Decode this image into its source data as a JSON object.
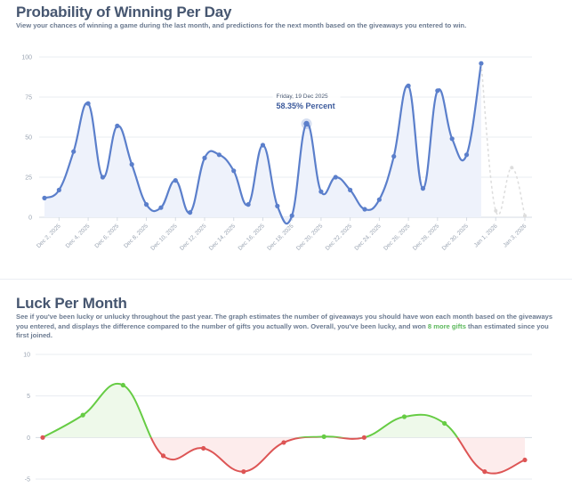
{
  "colors": {
    "line_blue": "#5b7fcb",
    "fill_blue": "#eef2fb",
    "prediction": "#dddddd",
    "green": "#66cc44",
    "red": "#dd5555",
    "green_fill": "#eef9ea",
    "red_fill": "#fdecec",
    "gridline": "#e8ecf1",
    "text_muted": "#9aa4b2",
    "heading": "#465670"
  },
  "section1": {
    "title": "Probability of Winning Per Day",
    "description": "View your chances of winning a game during the last month, and predictions for the next month based on the giveaways you entered to win."
  },
  "section2": {
    "title": "Luck Per Month",
    "description_pre": "See if you've been lucky or unlucky throughout the past year. The graph estimates the number of giveaways you should have won each month based on the giveaways you entered, and displays the difference compared to the number of gifts you actually won. Overall, you've been lucky, and won ",
    "description_highlight": "8 more gifts",
    "description_post": " than estimated since you first joined."
  },
  "chart_data": [
    {
      "type": "area",
      "title": "Probability of Winning Per Day",
      "ylabel": "",
      "xlabel": "",
      "ylim": [
        0,
        100
      ],
      "y_ticks": [
        0,
        25,
        50,
        75,
        100
      ],
      "x_tick_labels": [
        "Dec 2, 2025",
        "Dec 4, 2025",
        "Dec 6, 2025",
        "Dec 8, 2025",
        "Dec 10, 2025",
        "Dec 12, 2025",
        "Dec 14, 2025",
        "Dec 16, 2025",
        "Dec 18, 2025",
        "Dec 20, 2025",
        "Dec 22, 2025",
        "Dec 24, 2025",
        "Dec 26, 2025",
        "Dec 28, 2025",
        "Dec 30, 2025",
        "Jan 1, 2026",
        "Jan 3, 2026"
      ],
      "x_start": "Dec 1, 2025",
      "series": [
        {
          "values": [
            12,
            17,
            41,
            71,
            25,
            57,
            33,
            8,
            6,
            23,
            3,
            37,
            39,
            29,
            8,
            45,
            7,
            1,
            58.35,
            16,
            25,
            17,
            5,
            11,
            38,
            82,
            18,
            79,
            49,
            39,
            96
          ]
        },
        {
          "values": [
            4,
            31,
            1
          ]
        }
      ],
      "prediction_offset": 30,
      "tooltip": {
        "date": "Friday, 19 Dec 2025",
        "value": "58.35% Percent"
      },
      "grid": true
    },
    {
      "type": "line",
      "title": "Luck Per Month",
      "ylim": [
        -5,
        10
      ],
      "y_ticks": [
        -5,
        0,
        5,
        10
      ],
      "values": [
        0,
        2.7,
        6.3,
        -2.2,
        -1.3,
        -4.1,
        -0.6,
        0.1,
        0,
        2.5,
        1.7,
        -4.1,
        -2.7
      ],
      "positive_color": "#66cc44",
      "negative_color": "#dd5555",
      "grid": true
    }
  ]
}
